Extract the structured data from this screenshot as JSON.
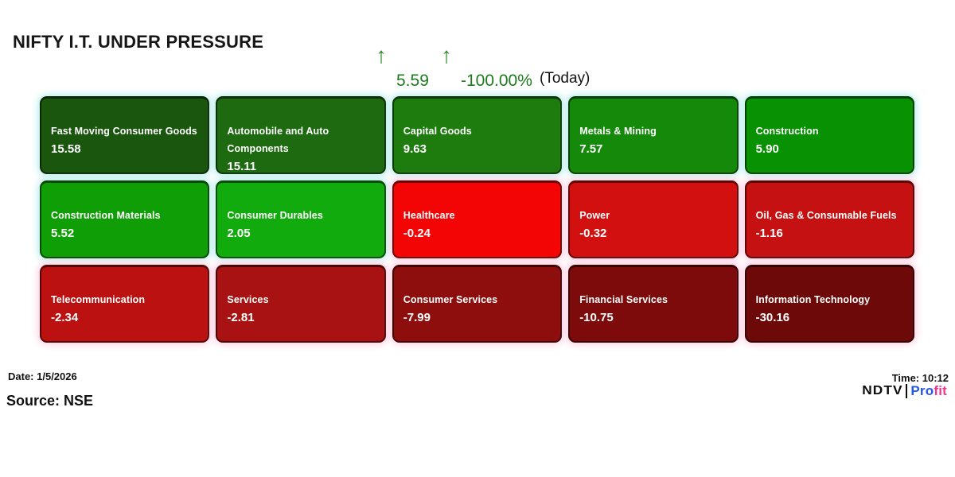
{
  "title": "NIFTY I.T. UNDER PRESSURE",
  "header_indicator": {
    "arrow_glyph": "↑",
    "value": "5.59",
    "change_percent": "-100.00%",
    "period_label": "(Today)",
    "text_color": "#1e7a1e",
    "arrow_color": "#2c8a2c"
  },
  "chart_data": {
    "type": "heatmap",
    "title": "NIFTY I.T. UNDER PRESSURE",
    "value_meaning": "sector change",
    "layout": {
      "rows": 3,
      "cols": 5,
      "legend": "off",
      "grid": "tile-matrix"
    },
    "points": [
      {
        "label": "Fast Moving Consumer Goods",
        "value": 15.58,
        "color": "#1a560d"
      },
      {
        "label": "Automobile and Auto Components",
        "value": 15.11,
        "color": "#1d6a10"
      },
      {
        "label": "Capital Goods",
        "value": 9.63,
        "color": "#1e7c0e"
      },
      {
        "label": "Metals & Mining",
        "value": 7.57,
        "color": "#15890a"
      },
      {
        "label": "Construction",
        "value": 5.9,
        "color": "#089203"
      },
      {
        "label": "Construction Materials",
        "value": 5.52,
        "color": "#0f9e06"
      },
      {
        "label": "Consumer Durables",
        "value": 2.05,
        "color": "#12ab0e"
      },
      {
        "label": "Healthcare",
        "value": -0.24,
        "color": "#f40505"
      },
      {
        "label": "Power",
        "value": -0.32,
        "color": "#d21010"
      },
      {
        "label": "Oil, Gas & Consumable Fuels",
        "value": -1.16,
        "color": "#c51111"
      },
      {
        "label": "Telecommunication",
        "value": -2.34,
        "color": "#bc1111"
      },
      {
        "label": "Services",
        "value": -2.81,
        "color": "#a91212"
      },
      {
        "label": "Consumer Services",
        "value": -7.99,
        "color": "#8e0e0e"
      },
      {
        "label": "Financial Services",
        "value": -10.75,
        "color": "#7d0b0b"
      },
      {
        "label": "Information Technology",
        "value": -30.16,
        "color": "#6e0909"
      }
    ]
  },
  "footer": {
    "date_label": "Date: 1/5/2026",
    "source_label": "Source: NSE",
    "time_label": "Time: 10:12",
    "logo": {
      "ndtv_text": "NDTV",
      "profit_part1": "Pro",
      "profit_part2": "fit",
      "profit_color1": "#2457e6",
      "profit_color2": "#f0368f"
    }
  }
}
